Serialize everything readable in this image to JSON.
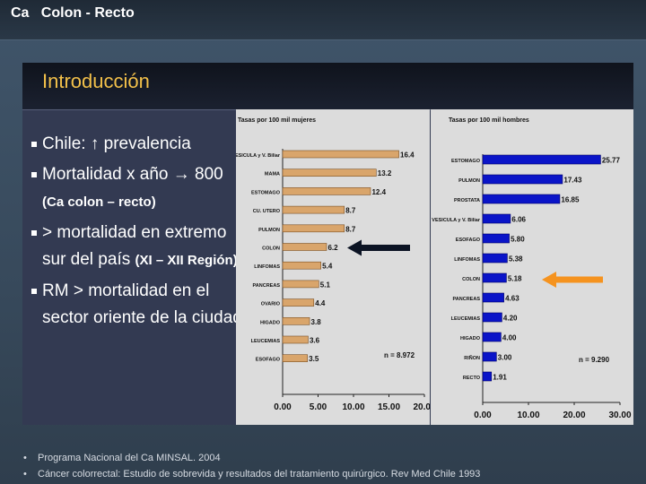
{
  "slide": {
    "top_title": "Ca   Colon - Recto",
    "heading": "Introducción",
    "bullets": [
      {
        "text": "Chile:  ↑  prevalencia"
      },
      {
        "text": "Mortalidad x año →  800",
        "sub": "(Ca colon – recto)"
      },
      {
        "text": "> mortalidad en extremo sur  del país",
        "sub": "(XI – XII Región)"
      },
      {
        "text": "RM > mortalidad en el sector oriente de la ciudad"
      }
    ],
    "footnotes": [
      "Programa Nacional del Ca MINSAL.  2004",
      "Cáncer colorrectal: Estudio de sobrevida y resultados del tratamiento quirúrgico.  Rev Med Chile 1993"
    ]
  },
  "colors": {
    "left_bar": "#d9a56b",
    "right_bar": "#0a14c8",
    "left_arrow": "#0c1424",
    "right_arrow": "#f5931f"
  },
  "chart_data": [
    {
      "type": "bar",
      "orientation": "horizontal",
      "title": "Tasas por 100 mil mujeres",
      "categories": [
        "VESICULA y V. Biliar",
        "MAMA",
        "ESTOMAGO",
        "CU. UTERO",
        "PULMON",
        "COLON",
        "LINFOMAS",
        "PANCREAS",
        "OVARIO",
        "HIGADO",
        "LEUCEMIAS",
        "ESOFAGO"
      ],
      "values": [
        16.4,
        13.2,
        12.4,
        8.7,
        8.7,
        6.2,
        5.4,
        5.1,
        4.4,
        3.8,
        3.6,
        3.5
      ],
      "value_labels": [
        "16.4",
        "13.2",
        "12.4",
        "8.7",
        "8.7",
        "6.2",
        "5.4",
        "5.1",
        "4.4",
        "3.8",
        "3.6",
        "3.5"
      ],
      "xticks": [
        "0.00",
        "5.00",
        "10.00",
        "15.00",
        "20.00"
      ],
      "xlim": [
        0,
        20
      ],
      "annotation": "n = 8.972",
      "highlight": "COLON"
    },
    {
      "type": "bar",
      "orientation": "horizontal",
      "title": "Tasas por 100 mil hombres",
      "categories": [
        "ESTOMAGO",
        "PULMON",
        "PROSTATA",
        "VESICULA y V. Biliar",
        "ESOFAGO",
        "LINFOMAS",
        "COLON",
        "PANCREAS",
        "LEUCEMIAS",
        "HIGADO",
        "RIÑON",
        "RECTO"
      ],
      "values": [
        25.77,
        17.43,
        16.85,
        6.06,
        5.8,
        5.38,
        5.18,
        4.63,
        4.2,
        4.0,
        3.0,
        1.91
      ],
      "value_labels": [
        "25.77",
        "17.43",
        "16.85",
        "6.06",
        "5.80",
        "5.38",
        "5.18",
        "4.63",
        "4.20",
        "4.00",
        "3.00",
        "1.91"
      ],
      "xticks": [
        "0.00",
        "10.00",
        "20.00",
        "30.00"
      ],
      "xlim": [
        0,
        30
      ],
      "annotation": "n = 9.290",
      "highlight": "COLON"
    }
  ]
}
